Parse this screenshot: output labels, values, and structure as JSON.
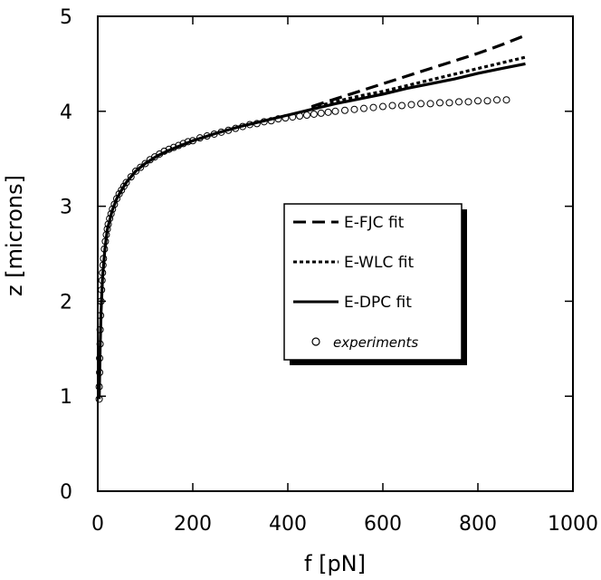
{
  "chart_data": {
    "type": "line",
    "title": "",
    "xlabel": "f [pN]",
    "ylabel": "z [microns]",
    "xlim": [
      0,
      1000
    ],
    "ylim": [
      0,
      5
    ],
    "xticks": [
      0,
      200,
      400,
      600,
      800,
      1000
    ],
    "yticks": [
      0,
      1,
      2,
      3,
      4,
      5
    ],
    "grid": false,
    "legend_position": "center-right",
    "series": [
      {
        "name": "E-FJC fit",
        "style": "dashed",
        "color": "#000000",
        "x": [
          450,
          500,
          550,
          600,
          650,
          700,
          750,
          800,
          850,
          900
        ],
        "y": [
          4.05,
          4.13,
          4.21,
          4.29,
          4.37,
          4.45,
          4.53,
          4.61,
          4.7,
          4.8
        ]
      },
      {
        "name": "E-WLC fit",
        "style": "dotted",
        "color": "#000000",
        "x": [
          450,
          500,
          550,
          600,
          650,
          700,
          750,
          800,
          850,
          900
        ],
        "y": [
          4.04,
          4.1,
          4.16,
          4.21,
          4.27,
          4.33,
          4.39,
          4.45,
          4.51,
          4.57
        ]
      },
      {
        "name": "E-DPC fit",
        "style": "solid",
        "color": "#000000",
        "x": [
          3,
          5,
          7,
          10,
          15,
          20,
          30,
          40,
          50,
          60,
          80,
          100,
          125,
          150,
          175,
          200,
          250,
          300,
          350,
          400,
          450,
          500,
          550,
          600,
          650,
          700,
          750,
          800,
          850,
          900
        ],
        "y": [
          0.97,
          1.5,
          1.9,
          2.25,
          2.55,
          2.75,
          2.95,
          3.08,
          3.17,
          3.25,
          3.37,
          3.45,
          3.53,
          3.59,
          3.64,
          3.69,
          3.77,
          3.84,
          3.9,
          3.96,
          4.02,
          4.08,
          4.13,
          4.18,
          4.24,
          4.29,
          4.34,
          4.4,
          4.45,
          4.5
        ]
      },
      {
        "name": "experiments",
        "style": "markers",
        "color": "#000000",
        "x": [
          3,
          3,
          4,
          4,
          5,
          5,
          6,
          7,
          8,
          9,
          10,
          11,
          12,
          14,
          16,
          18,
          20,
          22,
          25,
          28,
          31,
          35,
          40,
          45,
          50,
          55,
          60,
          70,
          80,
          90,
          100,
          110,
          120,
          130,
          140,
          150,
          160,
          170,
          180,
          190,
          200,
          215,
          230,
          245,
          260,
          275,
          290,
          305,
          320,
          335,
          350,
          365,
          380,
          395,
          410,
          425,
          440,
          455,
          470,
          485,
          500,
          520,
          540,
          560,
          580,
          600,
          620,
          640,
          660,
          680,
          700,
          720,
          740,
          760,
          780,
          800,
          820,
          840,
          860
        ],
        "y": [
          0.97,
          1.1,
          1.25,
          1.4,
          1.55,
          1.7,
          1.85,
          2.0,
          2.12,
          2.22,
          2.3,
          2.38,
          2.45,
          2.55,
          2.63,
          2.7,
          2.76,
          2.81,
          2.87,
          2.92,
          2.97,
          3.02,
          3.08,
          3.13,
          3.17,
          3.21,
          3.25,
          3.31,
          3.37,
          3.41,
          3.45,
          3.49,
          3.52,
          3.55,
          3.58,
          3.6,
          3.62,
          3.64,
          3.66,
          3.68,
          3.69,
          3.72,
          3.74,
          3.76,
          3.78,
          3.8,
          3.82,
          3.84,
          3.86,
          3.87,
          3.89,
          3.9,
          3.92,
          3.93,
          3.94,
          3.95,
          3.96,
          3.97,
          3.98,
          3.99,
          4.0,
          4.01,
          4.02,
          4.03,
          4.04,
          4.05,
          4.06,
          4.06,
          4.07,
          4.08,
          4.08,
          4.09,
          4.09,
          4.1,
          4.1,
          4.11,
          4.11,
          4.12,
          4.12
        ]
      }
    ]
  }
}
